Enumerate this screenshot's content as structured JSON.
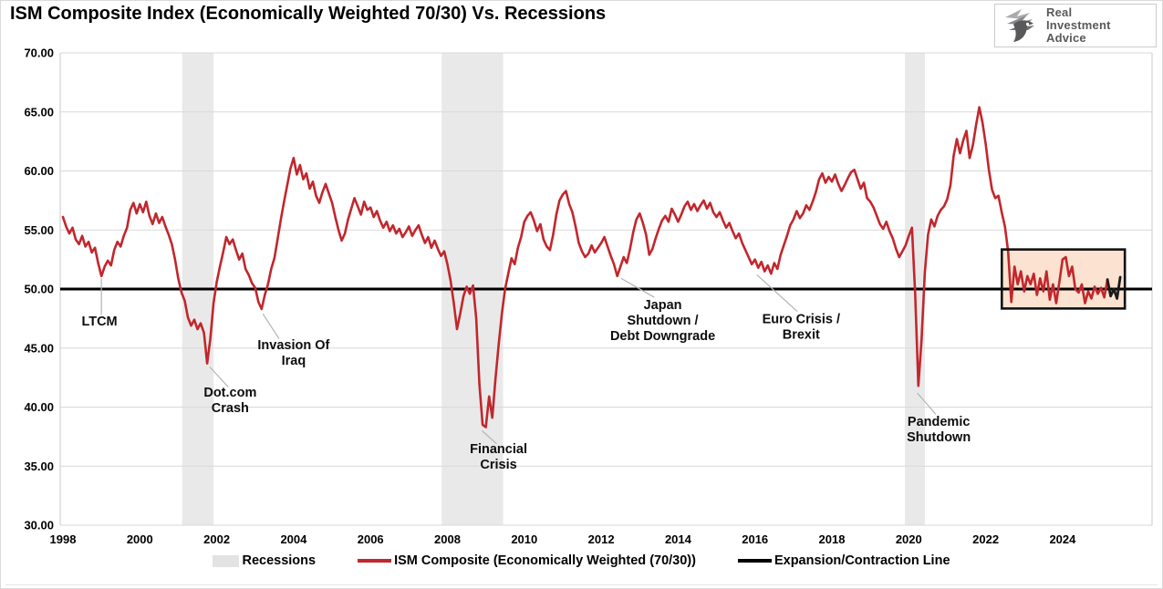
{
  "title": "ISM Composite Index (Economically Weighted 70/30) Vs. Recessions",
  "logo": {
    "line1": "Real",
    "line2": "Investment",
    "line3": "Advice"
  },
  "legend": {
    "items": [
      {
        "label": "Recessions",
        "swatch": "band",
        "color": "#e3e3e3"
      },
      {
        "label": "ISM Composite (Economically Weighted (70/30))",
        "swatch": "line",
        "color": "#c1272d"
      },
      {
        "label": "Expansion/Contraction Line",
        "swatch": "line",
        "color": "#000000"
      }
    ]
  },
  "chart_data": {
    "type": "line",
    "title": "ISM Composite Index (Economically Weighted 70/30) Vs. Recessions",
    "xlabel": "",
    "ylabel": "",
    "ylim": [
      30,
      70
    ],
    "y_ticks": [
      30,
      35,
      40,
      45,
      50,
      55,
      60,
      65,
      70
    ],
    "y_tick_format": "2-decimals",
    "x_ticks": [
      1998,
      2000,
      2002,
      2004,
      2006,
      2008,
      2010,
      2012,
      2014,
      2016,
      2018,
      2020,
      2022,
      2024
    ],
    "grid": "horizontal-only",
    "legend_position": "bottom-center",
    "expansion_contraction_level": 50,
    "colors": {
      "line": "#c1272d",
      "latest_segment": "#1a1a1a",
      "recession_band": "#e9e9e9",
      "expansion_line": "#000000",
      "gridline": "#d9d9d9",
      "plot_border": "#c8c8c8",
      "leader_line": "#b3b3b3",
      "highlight_box_fill": "#fce2d0",
      "highlight_box_border": "#111111"
    },
    "series": [
      {
        "name": "ISM Composite (Economically Weighted (70/30))",
        "color": "#c1272d",
        "start_year": 1998,
        "frequency": "monthly",
        "values": [
          56.1,
          55.3,
          54.7,
          55.2,
          54.2,
          53.8,
          54.5,
          53.6,
          54.0,
          53.1,
          53.5,
          52.2,
          51.1,
          51.9,
          52.4,
          52.0,
          53.3,
          54.0,
          53.6,
          54.5,
          55.2,
          56.7,
          57.3,
          56.4,
          57.2,
          56.5,
          57.4,
          56.2,
          55.5,
          56.4,
          55.6,
          56.1,
          55.3,
          54.6,
          53.8,
          52.5,
          50.9,
          49.7,
          49.0,
          47.6,
          46.9,
          47.4,
          46.6,
          47.1,
          46.3,
          43.7,
          45.8,
          48.8,
          50.6,
          51.9,
          53.1,
          54.4,
          53.8,
          54.2,
          53.3,
          52.5,
          53.0,
          51.7,
          51.2,
          50.5,
          50.1,
          48.9,
          48.3,
          49.5,
          50.4,
          51.7,
          52.6,
          54.2,
          55.9,
          57.4,
          58.8,
          60.2,
          61.1,
          59.7,
          60.5,
          59.3,
          59.8,
          58.5,
          59.1,
          57.9,
          57.3,
          58.2,
          58.9,
          58.1,
          57.3,
          56.1,
          55.0,
          54.1,
          54.7,
          55.9,
          56.8,
          57.7,
          57.0,
          56.3,
          57.4,
          56.7,
          56.9,
          56.1,
          56.6,
          55.8,
          55.2,
          55.7,
          54.9,
          55.4,
          54.7,
          55.1,
          54.4,
          54.8,
          55.3,
          54.5,
          55.0,
          55.4,
          54.6,
          53.9,
          54.4,
          53.5,
          54.1,
          53.4,
          52.8,
          53.2,
          52.1,
          50.7,
          48.8,
          46.6,
          47.9,
          49.4,
          50.2,
          49.6,
          50.3,
          47.5,
          41.9,
          38.5,
          38.3,
          40.9,
          39.1,
          42.4,
          45.3,
          47.9,
          50.0,
          51.3,
          52.6,
          52.1,
          53.5,
          54.4,
          55.7,
          56.2,
          56.5,
          55.8,
          54.9,
          55.5,
          54.2,
          53.6,
          53.3,
          54.6,
          56.3,
          57.5,
          58.0,
          58.3,
          57.2,
          56.5,
          55.3,
          53.9,
          53.2,
          52.7,
          53.0,
          53.7,
          53.1,
          53.5,
          53.9,
          54.4,
          53.6,
          52.8,
          52.1,
          51.1,
          51.9,
          52.7,
          52.2,
          53.4,
          54.8,
          55.9,
          56.4,
          55.6,
          54.6,
          52.9,
          53.4,
          54.3,
          55.1,
          55.8,
          56.2,
          55.7,
          56.8,
          56.3,
          55.7,
          56.3,
          57.0,
          57.4,
          56.7,
          57.2,
          56.6,
          57.1,
          57.5,
          56.8,
          57.3,
          56.5,
          56.1,
          56.5,
          55.8,
          55.2,
          55.6,
          54.9,
          54.3,
          54.7,
          53.9,
          53.3,
          52.7,
          52.1,
          52.5,
          51.8,
          52.3,
          51.5,
          52.0,
          51.3,
          52.2,
          51.7,
          52.9,
          53.7,
          54.5,
          55.4,
          55.9,
          56.6,
          56.0,
          56.4,
          57.1,
          56.7,
          57.4,
          58.2,
          59.3,
          59.8,
          59.0,
          59.5,
          59.1,
          59.7,
          58.9,
          58.3,
          58.8,
          59.4,
          59.9,
          60.1,
          59.3,
          58.5,
          59.0,
          57.7,
          57.4,
          56.9,
          56.2,
          55.5,
          55.1,
          55.7,
          54.9,
          54.3,
          53.4,
          52.7,
          53.2,
          53.7,
          54.5,
          55.2,
          49.6,
          41.8,
          45.7,
          51.4,
          54.6,
          55.9,
          55.3,
          56.2,
          56.7,
          57.0,
          57.6,
          58.8,
          61.3,
          62.7,
          61.5,
          62.6,
          63.4,
          61.1,
          62.2,
          63.9,
          65.4,
          64.1,
          62.3,
          60.1,
          58.4,
          57.7,
          57.9,
          56.5,
          55.3,
          53.2,
          48.9,
          51.9,
          50.4,
          51.5,
          49.8,
          51.1,
          50.4,
          51.3,
          49.5,
          50.9,
          49.8,
          51.5,
          49.1,
          50.4,
          48.8,
          50.6,
          52.5,
          52.7,
          51.1,
          51.9,
          50.0,
          49.7,
          50.4,
          48.8,
          49.8,
          49.2,
          50.2,
          49.6,
          50.1,
          49.3,
          50.8,
          49.4,
          50.0,
          49.2,
          51.0
        ]
      }
    ],
    "black_segment_start_index": 326,
    "recessions": [
      {
        "name": "Dot.com recession",
        "start": 2001.1,
        "end": 2001.92
      },
      {
        "name": "Financial crisis recession",
        "start": 2007.85,
        "end": 2009.45
      },
      {
        "name": "Pandemic recession",
        "start": 2019.9,
        "end": 2020.42
      }
    ],
    "highlight_box": {
      "x_start": 2022.42,
      "x_end": 2025.62,
      "y_min": 48.35,
      "y_max": 53.35
    },
    "annotations": [
      {
        "slug": "ltcm",
        "lines": [
          "LTCM"
        ],
        "t": 1998.95,
        "v": 46.9,
        "leader": {
          "t1": 1999.0,
          "v1": 50.9,
          "t2": 1999.0,
          "v2": 47.8
        }
      },
      {
        "slug": "dotcom-crash",
        "lines": [
          "Dot.com",
          "Crash"
        ],
        "t": 2002.35,
        "v": 40.9,
        "leader": {
          "t1": 2001.82,
          "v1": 43.4,
          "t2": 2002.3,
          "v2": 41.7
        }
      },
      {
        "slug": "invasion-of-iraq",
        "lines": [
          "Invasion Of",
          "Iraq"
        ],
        "t": 2004.0,
        "v": 44.9,
        "leader": {
          "t1": 2003.2,
          "v1": 47.9,
          "t2": 2003.62,
          "v2": 45.8
        }
      },
      {
        "slug": "financial-crisis",
        "lines": [
          "Financial",
          "Crisis"
        ],
        "t": 2009.33,
        "v": 36.1,
        "leader": {
          "t1": 2008.9,
          "v1": 38.0,
          "t2": 2009.28,
          "v2": 36.9
        }
      },
      {
        "slug": "japan-shutdown-debt-downgrade",
        "lines": [
          "Japan",
          "Shutdown /",
          "Debt Downgrade"
        ],
        "t": 2013.6,
        "v": 48.3,
        "leader": {
          "t1": 2012.52,
          "v1": 50.9,
          "t2": 2013.38,
          "v2": 49.3
        }
      },
      {
        "slug": "euro-crisis-brexit",
        "lines": [
          "Euro Crisis /",
          "Brexit"
        ],
        "t": 2017.2,
        "v": 47.1,
        "leader": {
          "t1": 2016.05,
          "v1": 51.2,
          "t2": 2017.1,
          "v2": 48.1
        }
      },
      {
        "slug": "pandemic-shutdown",
        "lines": [
          "Pandemic",
          "Shutdown"
        ],
        "t": 2020.78,
        "v": 38.4,
        "leader": {
          "t1": 2020.22,
          "v1": 41.2,
          "t2": 2020.7,
          "v2": 39.4
        }
      }
    ]
  }
}
